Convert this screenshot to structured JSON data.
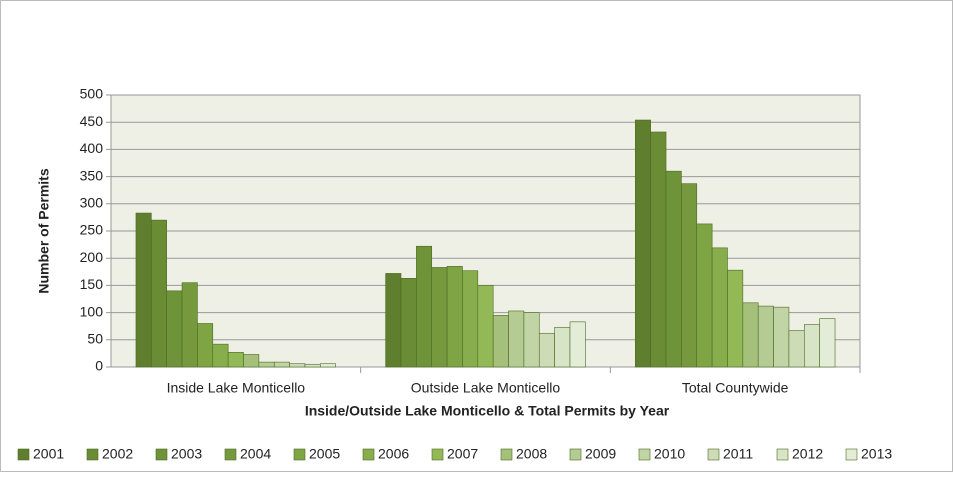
{
  "chart_data": {
    "type": "bar",
    "categories": [
      "Inside Lake Monticello",
      "Outside Lake Monticello",
      "Total Countywide"
    ],
    "xlabel": "Inside/Outside Lake Monticello & Total Permits by Year",
    "ylabel": "Number of Permits",
    "ylim": [
      0,
      500
    ],
    "yticks": [
      0,
      50,
      100,
      150,
      200,
      250,
      300,
      350,
      400,
      450,
      500
    ],
    "grid": true,
    "legend": "bottom",
    "series": [
      {
        "name": "2001",
        "color": "#5f7f2f",
        "values": [
          283,
          172,
          454
        ]
      },
      {
        "name": "2002",
        "color": "#6a8c35",
        "values": [
          270,
          163,
          432
        ]
      },
      {
        "name": "2003",
        "color": "#6f9339",
        "values": [
          140,
          222,
          360
        ]
      },
      {
        "name": "2004",
        "color": "#76993e",
        "values": [
          155,
          183,
          337
        ]
      },
      {
        "name": "2005",
        "color": "#7fa444",
        "values": [
          80,
          185,
          263
        ]
      },
      {
        "name": "2006",
        "color": "#88ad4c",
        "values": [
          42,
          177,
          219
        ]
      },
      {
        "name": "2007",
        "color": "#92b956",
        "values": [
          27,
          150,
          178
        ]
      },
      {
        "name": "2008",
        "color": "#a4c07a",
        "values": [
          23,
          95,
          118
        ]
      },
      {
        "name": "2009",
        "color": "#b4cc93",
        "values": [
          9,
          103,
          112
        ]
      },
      {
        "name": "2010",
        "color": "#c1d4a6",
        "values": [
          9,
          100,
          110
        ]
      },
      {
        "name": "2011",
        "color": "#cddcb7",
        "values": [
          6,
          62,
          67
        ]
      },
      {
        "name": "2012",
        "color": "#d8e4c6",
        "values": [
          5,
          73,
          78
        ]
      },
      {
        "name": "2013",
        "color": "#e3ecd6",
        "values": [
          6,
          83,
          89
        ]
      }
    ]
  }
}
